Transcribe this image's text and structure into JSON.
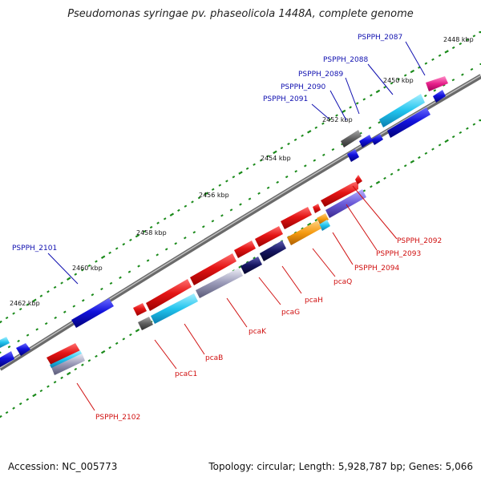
{
  "title": "Pseudomonas syringae pv. phaseolicola 1448A, complete genome",
  "footer": {
    "accession": "Accession: NC_005773",
    "topology": "Topology: circular; Length: 5,928,787 bp; Genes: 5,066"
  },
  "kbp_labels": [
    "2448 kbp",
    "2450 kbp",
    "2452 kbp",
    "2454 kbp",
    "2456 kbp",
    "2458 kbp",
    "2460 kbp",
    "2462 kbp"
  ],
  "gene_labels": {
    "blue": [
      "PSPPH_2087",
      "PSPPH_2088",
      "PSPPH_2089",
      "PSPPH_2090",
      "PSPPH_2091",
      "PSPPH_2101"
    ],
    "red": [
      "PSPPH_2092",
      "PSPPH_2093",
      "PSPPH_2094",
      "pcaQ",
      "pcaH",
      "pcaG",
      "pcaK",
      "pcaB",
      "pcaC1",
      "PSPPH_2102"
    ]
  },
  "colors": {
    "backbone": "#8a8a8a",
    "forward_gene": "#1010d8",
    "reverse_gene": "#e01010",
    "ticks": "#1a8a1a",
    "blue_label": "#1010b0",
    "red_label": "#d01010"
  }
}
